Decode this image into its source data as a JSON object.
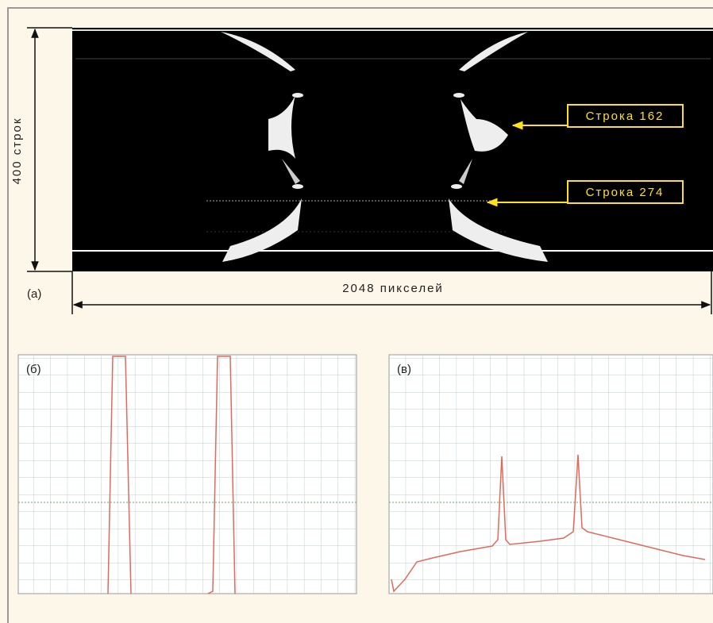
{
  "figure": {
    "axis_rows": "400 строк",
    "axis_pixels": "2048 пикселей",
    "panel_a": "(а)",
    "callouts": [
      "Строка 162",
      "Строка 274"
    ],
    "panel_b": "(б)",
    "panel_c": "(в)"
  }
}
